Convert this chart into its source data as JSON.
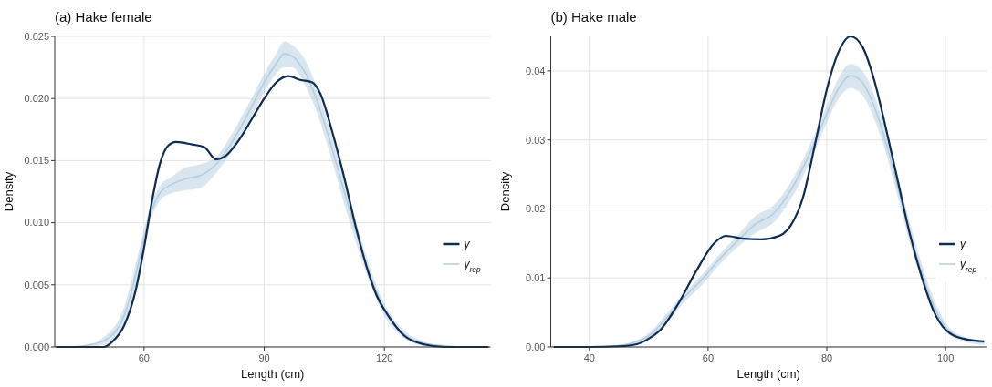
{
  "chart_data": [
    {
      "type": "line",
      "title": "(a) Hake female",
      "xlabel": "Length (cm)",
      "ylabel": "Density",
      "xlim": [
        37.7,
        146.5
      ],
      "xticks": [
        60,
        90,
        120
      ],
      "ylim": [
        0,
        0.025
      ],
      "yticks": [
        {
          "value": 0,
          "label": "0.000"
        },
        {
          "value": 0.005,
          "label": "0.005"
        },
        {
          "value": 0.01,
          "label": "0.010"
        },
        {
          "value": 0.015,
          "label": "0.015"
        },
        {
          "value": 0.02,
          "label": "0.020"
        },
        {
          "value": 0.025,
          "label": "0.025"
        }
      ],
      "grid": true,
      "legend": "bottom right",
      "line_style": "solid",
      "marker": "none",
      "series": [
        {
          "name": "y$_{rep}$",
          "color": "#b3cde0",
          "x": [
            40,
            45,
            50,
            55,
            58,
            60,
            62,
            64,
            67,
            70,
            74,
            78,
            82,
            86,
            90,
            93,
            95,
            97,
            100,
            103,
            106,
            110,
            113,
            116,
            120,
            125,
            130,
            135,
            140,
            146
          ],
          "lower": [
            0,
            0,
            0.0002,
            0.0018,
            0.005,
            0.008,
            0.0105,
            0.0118,
            0.0124,
            0.0126,
            0.0128,
            0.014,
            0.0158,
            0.018,
            0.0205,
            0.022,
            0.0225,
            0.0225,
            0.0212,
            0.019,
            0.016,
            0.0115,
            0.0083,
            0.0055,
            0.0025,
            0.0007,
            0.0001,
            0,
            0,
            0
          ],
          "upper": [
            0,
            0.0001,
            0.0008,
            0.0032,
            0.0068,
            0.0095,
            0.0117,
            0.013,
            0.0137,
            0.0144,
            0.0147,
            0.0153,
            0.0172,
            0.0195,
            0.022,
            0.0236,
            0.0246,
            0.0243,
            0.0232,
            0.021,
            0.018,
            0.0135,
            0.01,
            0.0068,
            0.0035,
            0.0013,
            0.0004,
            0.0001,
            0,
            0
          ],
          "values": [
            0,
            0.0001,
            0.0005,
            0.0025,
            0.0059,
            0.0088,
            0.0111,
            0.0124,
            0.0131,
            0.0135,
            0.0138,
            0.0147,
            0.0165,
            0.0188,
            0.0213,
            0.0228,
            0.0236,
            0.0234,
            0.0222,
            0.02,
            0.017,
            0.0125,
            0.0092,
            0.0062,
            0.003,
            0.001,
            0.0003,
            0.0001,
            0,
            0
          ]
        },
        {
          "name": "y",
          "color": "#0d2b53",
          "x": [
            38,
            45,
            50,
            52,
            55,
            58,
            60,
            62,
            64,
            66,
            68,
            72,
            75,
            78,
            80,
            84,
            87,
            90,
            93,
            96,
            99,
            102,
            104,
            107,
            110,
            113,
            116,
            118,
            121,
            125,
            130,
            135,
            146
          ],
          "values": [
            0,
            0,
            0,
            0.0004,
            0.0017,
            0.0047,
            0.008,
            0.0118,
            0.0148,
            0.0162,
            0.0165,
            0.0163,
            0.0161,
            0.0151,
            0.0153,
            0.0168,
            0.0184,
            0.02,
            0.0213,
            0.0218,
            0.0215,
            0.0213,
            0.0204,
            0.0173,
            0.0136,
            0.0095,
            0.006,
            0.0042,
            0.0025,
            0.0009,
            0.0002,
            0,
            0
          ]
        }
      ]
    },
    {
      "type": "line",
      "title": "(b) Hake male",
      "xlabel": "Length (cm)",
      "ylabel": "Density",
      "xlim": [
        33.5,
        106.9
      ],
      "xticks": [
        40,
        60,
        80,
        100
      ],
      "ylim": [
        0,
        0.045
      ],
      "yticks": [
        {
          "value": 0,
          "label": "0.00"
        },
        {
          "value": 0.01,
          "label": "0.01"
        },
        {
          "value": 0.02,
          "label": "0.02"
        },
        {
          "value": 0.03,
          "label": "0.03"
        },
        {
          "value": 0.04,
          "label": "0.04"
        }
      ],
      "grid": true,
      "legend": "bottom right",
      "line_style": "solid",
      "marker": "none",
      "series": [
        {
          "name": "y$_{rep}$",
          "color": "#b3cde0",
          "x": [
            34,
            40,
            45,
            48,
            50,
            53,
            56,
            59,
            62,
            65,
            68,
            71,
            74,
            77,
            80,
            82,
            84,
            86,
            88,
            90,
            92,
            94,
            96,
            98,
            100,
            103,
            106.5
          ],
          "lower": [
            0,
            0,
            0.0001,
            0.0005,
            0.0012,
            0.0035,
            0.0065,
            0.009,
            0.012,
            0.0145,
            0.0165,
            0.018,
            0.0215,
            0.0265,
            0.0325,
            0.036,
            0.0375,
            0.0365,
            0.033,
            0.028,
            0.0215,
            0.015,
            0.0095,
            0.005,
            0.0022,
            0.0008,
            0.0003
          ],
          "upper": [
            0,
            0,
            0.0003,
            0.001,
            0.002,
            0.0048,
            0.0078,
            0.0105,
            0.0135,
            0.0162,
            0.019,
            0.0205,
            0.024,
            0.029,
            0.035,
            0.039,
            0.041,
            0.04,
            0.0365,
            0.031,
            0.0245,
            0.018,
            0.012,
            0.007,
            0.0035,
            0.0015,
            0.0008
          ],
          "values": [
            0,
            0,
            0.0002,
            0.0008,
            0.0016,
            0.0042,
            0.0072,
            0.0098,
            0.0128,
            0.0154,
            0.0178,
            0.0193,
            0.0228,
            0.0278,
            0.0338,
            0.0375,
            0.0393,
            0.0383,
            0.0348,
            0.0295,
            0.023,
            0.0165,
            0.0108,
            0.006,
            0.0029,
            0.0012,
            0.0006
          ]
        },
        {
          "name": "y",
          "color": "#0d2b53",
          "x": [
            34,
            40,
            45,
            48,
            50,
            52,
            55,
            58,
            61,
            63,
            66,
            69,
            72,
            74,
            76,
            78,
            80,
            82,
            84,
            86,
            88,
            90,
            92,
            94,
            96,
            98,
            100,
            103,
            106.5
          ],
          "values": [
            0,
            0,
            0.0001,
            0.0004,
            0.0012,
            0.0025,
            0.0063,
            0.011,
            0.015,
            0.0161,
            0.0157,
            0.0156,
            0.0161,
            0.0177,
            0.0217,
            0.0293,
            0.0373,
            0.0428,
            0.045,
            0.0435,
            0.0386,
            0.0315,
            0.0239,
            0.0163,
            0.0101,
            0.0052,
            0.0025,
            0.0012,
            0.0008
          ]
        }
      ]
    }
  ]
}
